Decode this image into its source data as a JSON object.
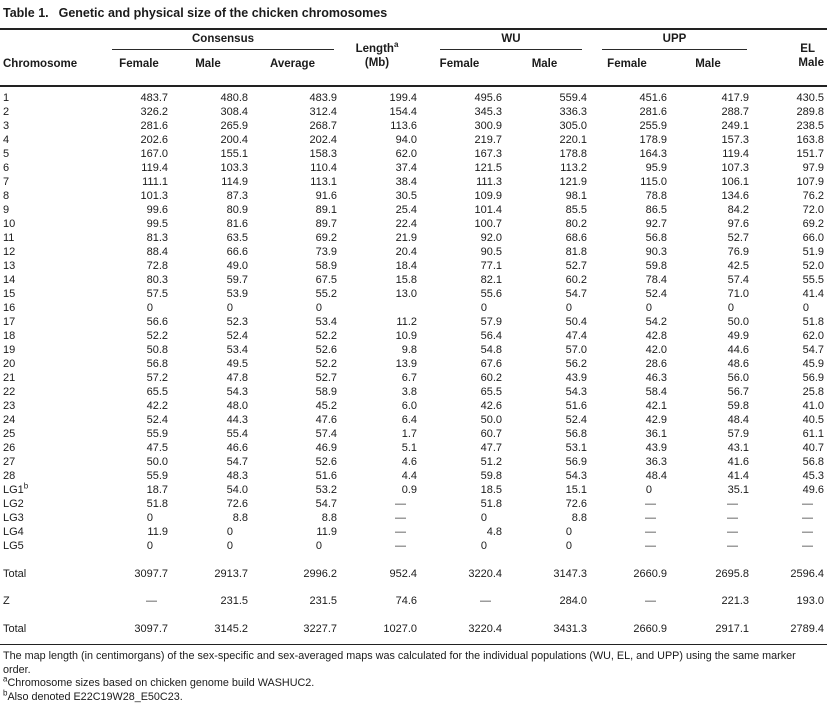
{
  "title": {
    "label": "Table 1.",
    "caption": "Genetic and physical size of the chicken chromosomes"
  },
  "table": {
    "headers": {
      "chromosome": "Chromosome",
      "consensus": {
        "label": "Consensus",
        "sub": [
          "Female",
          "Male",
          "Average"
        ]
      },
      "length": {
        "line1": "Length",
        "sup": "a",
        "line2": "(Mb)"
      },
      "wu": {
        "label": "WU",
        "sub": [
          "Female",
          "Male"
        ]
      },
      "upp": {
        "label": "UPP",
        "sub": [
          "Female",
          "Male"
        ]
      },
      "el": {
        "line1": "EL",
        "line2": "Male"
      }
    },
    "rows": [
      {
        "name": "1",
        "values": [
          "483.7",
          "480.8",
          "483.9",
          "199.4",
          "495.6",
          "559.4",
          "451.6",
          "417.9",
          "430.5"
        ]
      },
      {
        "name": "2",
        "values": [
          "326.2",
          "308.4",
          "312.4",
          "154.4",
          "345.3",
          "336.3",
          "281.6",
          "288.7",
          "289.8"
        ]
      },
      {
        "name": "3",
        "values": [
          "281.6",
          "265.9",
          "268.7",
          "113.6",
          "300.9",
          "305.0",
          "255.9",
          "249.1",
          "238.5"
        ]
      },
      {
        "name": "4",
        "values": [
          "202.6",
          "200.4",
          "202.4",
          "94.0",
          "219.7",
          "220.1",
          "178.9",
          "157.3",
          "163.8"
        ]
      },
      {
        "name": "5",
        "values": [
          "167.0",
          "155.1",
          "158.3",
          "62.0",
          "167.3",
          "178.8",
          "164.3",
          "119.4",
          "151.7"
        ]
      },
      {
        "name": "6",
        "values": [
          "119.4",
          "103.3",
          "110.4",
          "37.4",
          "121.5",
          "113.2",
          "95.9",
          "107.3",
          "97.9"
        ]
      },
      {
        "name": "7",
        "values": [
          "111.1",
          "114.9",
          "113.1",
          "38.4",
          "111.3",
          "121.9",
          "115.0",
          "106.1",
          "107.9"
        ]
      },
      {
        "name": "8",
        "values": [
          "101.3",
          "87.3",
          "91.6",
          "30.5",
          "109.9",
          "98.1",
          "78.8",
          "134.6",
          "76.2"
        ]
      },
      {
        "name": "9",
        "values": [
          "99.6",
          "80.9",
          "89.1",
          "25.4",
          "101.4",
          "85.5",
          "86.5",
          "84.2",
          "72.0"
        ]
      },
      {
        "name": "10",
        "values": [
          "99.5",
          "81.6",
          "89.7",
          "22.4",
          "100.7",
          "80.2",
          "92.7",
          "97.6",
          "69.2"
        ]
      },
      {
        "name": "11",
        "values": [
          "81.3",
          "63.5",
          "69.2",
          "21.9",
          "92.0",
          "68.6",
          "56.8",
          "52.7",
          "66.0"
        ]
      },
      {
        "name": "12",
        "values": [
          "88.4",
          "66.6",
          "73.9",
          "20.4",
          "90.5",
          "81.8",
          "90.3",
          "76.9",
          "51.9"
        ]
      },
      {
        "name": "13",
        "values": [
          "72.8",
          "49.0",
          "58.9",
          "18.4",
          "77.1",
          "52.7",
          "59.8",
          "42.5",
          "52.0"
        ]
      },
      {
        "name": "14",
        "values": [
          "80.3",
          "59.7",
          "67.5",
          "15.8",
          "82.1",
          "60.2",
          "78.4",
          "57.4",
          "55.5"
        ]
      },
      {
        "name": "15",
        "values": [
          "57.5",
          "53.9",
          "55.2",
          "13.0",
          "55.6",
          "54.7",
          "52.4",
          "71.0",
          "41.4"
        ]
      },
      {
        "name": "16",
        "values": [
          "0",
          "0",
          "0",
          "",
          "0",
          "0",
          "0",
          "0",
          "0"
        ]
      },
      {
        "name": "17",
        "values": [
          "56.6",
          "52.3",
          "53.4",
          "11.2",
          "57.9",
          "50.4",
          "54.2",
          "50.0",
          "51.8"
        ]
      },
      {
        "name": "18",
        "values": [
          "52.2",
          "52.4",
          "52.2",
          "10.9",
          "56.4",
          "47.4",
          "42.8",
          "49.9",
          "62.0"
        ]
      },
      {
        "name": "19",
        "values": [
          "50.8",
          "53.4",
          "52.6",
          "9.8",
          "54.8",
          "57.0",
          "42.0",
          "44.6",
          "54.7"
        ]
      },
      {
        "name": "20",
        "values": [
          "56.8",
          "49.5",
          "52.2",
          "13.9",
          "67.6",
          "56.2",
          "28.6",
          "48.6",
          "45.9"
        ]
      },
      {
        "name": "21",
        "values": [
          "57.2",
          "47.8",
          "52.7",
          "6.7",
          "60.2",
          "43.9",
          "46.3",
          "56.0",
          "56.9"
        ]
      },
      {
        "name": "22",
        "values": [
          "65.5",
          "54.3",
          "58.9",
          "3.8",
          "65.5",
          "54.3",
          "58.4",
          "56.7",
          "25.8"
        ]
      },
      {
        "name": "23",
        "values": [
          "42.2",
          "48.0",
          "45.2",
          "6.0",
          "42.6",
          "51.6",
          "42.1",
          "59.8",
          "41.0"
        ]
      },
      {
        "name": "24",
        "values": [
          "52.4",
          "44.3",
          "47.6",
          "6.4",
          "50.0",
          "52.4",
          "42.9",
          "48.4",
          "40.5"
        ]
      },
      {
        "name": "25",
        "values": [
          "55.9",
          "55.4",
          "57.4",
          "1.7",
          "60.7",
          "56.8",
          "36.1",
          "57.9",
          "61.1"
        ]
      },
      {
        "name": "26",
        "values": [
          "47.5",
          "46.6",
          "46.9",
          "5.1",
          "47.7",
          "53.1",
          "43.9",
          "43.1",
          "40.7"
        ]
      },
      {
        "name": "27",
        "values": [
          "50.0",
          "54.7",
          "52.6",
          "4.6",
          "51.2",
          "56.9",
          "36.3",
          "41.6",
          "56.8"
        ]
      },
      {
        "name": "28",
        "values": [
          "55.9",
          "48.3",
          "51.6",
          "4.4",
          "59.8",
          "54.3",
          "48.4",
          "41.4",
          "45.3"
        ]
      },
      {
        "name": "LG1",
        "name_sup": "b",
        "values": [
          "18.7",
          "54.0",
          "53.2",
          "0.9",
          "18.5",
          "15.1",
          "0",
          "35.1",
          "49.6"
        ]
      },
      {
        "name": "LG2",
        "values": [
          "51.8",
          "72.6",
          "54.7",
          "—",
          "51.8",
          "72.6",
          "—",
          "—",
          "—"
        ]
      },
      {
        "name": "LG3",
        "values": [
          "0",
          "8.8",
          "8.8",
          "—",
          "0",
          "8.8",
          "—",
          "—",
          "—"
        ]
      },
      {
        "name": "LG4",
        "values": [
          "11.9",
          "0",
          "11.9",
          "—",
          "4.8",
          "0",
          "—",
          "—",
          "—"
        ]
      },
      {
        "name": "LG5",
        "values": [
          "0",
          "0",
          "0",
          "—",
          "0",
          "0",
          "—",
          "—",
          "—"
        ]
      }
    ],
    "summary_rows": [
      {
        "name": "Total",
        "values": [
          "3097.7",
          "2913.7",
          "2996.2",
          "952.4",
          "3220.4",
          "3147.3",
          "2660.9",
          "2695.8",
          "2596.4"
        ]
      },
      {
        "name": "Z",
        "values": [
          "—",
          "231.5",
          "231.5",
          "74.6",
          "—",
          "284.0",
          "—",
          "221.3",
          "193.0"
        ]
      },
      {
        "name": "Total",
        "values": [
          "3097.7",
          "3145.2",
          "3227.7",
          "1027.0",
          "3220.4",
          "3431.3",
          "2660.9",
          "2917.1",
          "2789.4"
        ]
      }
    ]
  },
  "footnotes": {
    "general": "The map length (in centimorgans) of the sex-specific and sex-averaged maps was calculated for the individual populations (WU, EL, and UPP) using the same marker order.",
    "notes": [
      {
        "sup": "a",
        "text": "Chromosome sizes based on chicken genome build WASHUC2."
      },
      {
        "sup": "b",
        "text": "Also denoted E22C19W28_E50C23."
      }
    ]
  }
}
